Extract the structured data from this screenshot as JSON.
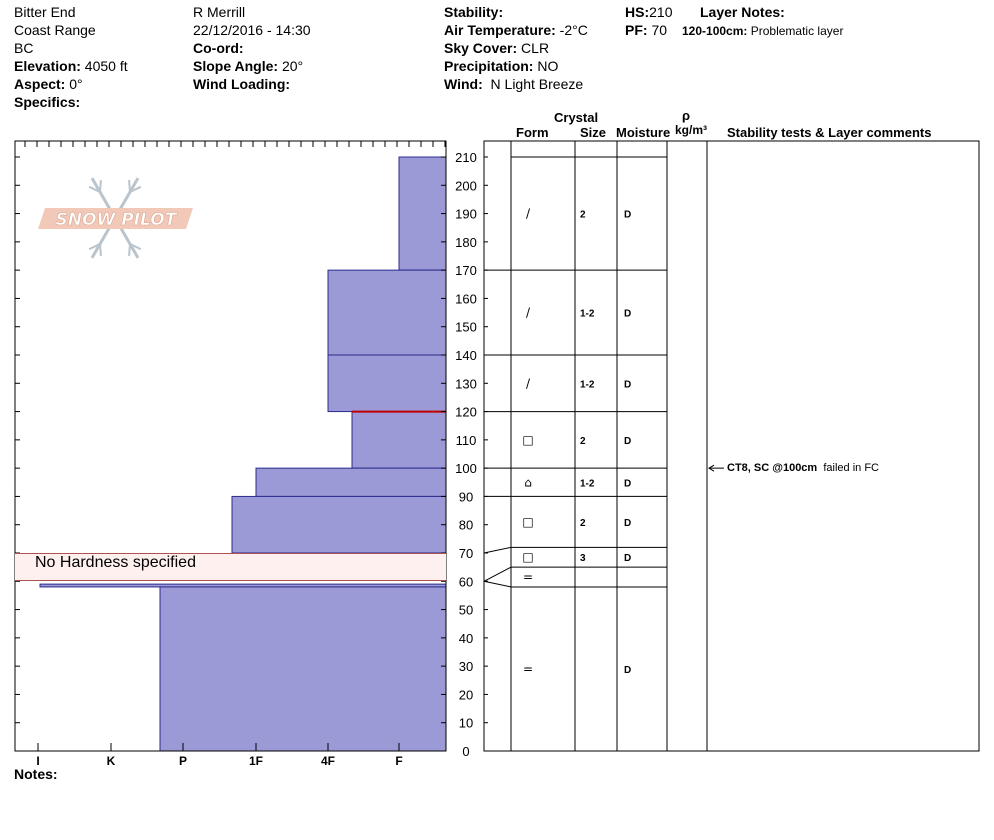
{
  "header": {
    "location": "Bitter End",
    "range": "Coast Range",
    "region": "BC",
    "elevation_label": "Elevation:",
    "elevation_value": "4050 ft",
    "aspect_label": "Aspect:",
    "aspect_value": "0°",
    "specifics_label": "Specifics:",
    "observer": "R Merrill",
    "datetime": "22/12/2016 - 14:30",
    "coord_label": "Co-ord:",
    "slope_label": "Slope Angle:",
    "slope_value": "20°",
    "wind_loading_label": "Wind Loading:",
    "stability_label": "Stability:",
    "air_temp_label": "Air Temperature:",
    "air_temp_value": "-2°C",
    "sky_label": "Sky Cover:",
    "sky_value": "CLR",
    "precip_label": "Precipitation:",
    "precip_value": "NO",
    "wind_label": "Wind:",
    "wind_value": "N Light Breeze",
    "hs_label": "HS:",
    "hs_value": "210",
    "pf_label": "PF:",
    "pf_value": "70",
    "layer_notes_label": "Layer Notes:",
    "layer_note_range": "120-100cm:",
    "layer_note_text": "Problematic layer"
  },
  "table_headers": {
    "crystal": "Crystal",
    "form": "Form",
    "size": "Size",
    "moisture": "Moisture",
    "rho": "ρ",
    "density_unit": "kg/m³",
    "comments": "Stability tests & Layer comments"
  },
  "logo_text": "SNOW PILOT",
  "no_hardness_text": "No Hardness specified",
  "notes_label": "Notes:",
  "stability_test": {
    "depth": 100,
    "label": "CT8, SC @100cm",
    "result": "failed in FC"
  },
  "chart_data": {
    "type": "snow-profile",
    "depth_axis": {
      "min": 0,
      "max": 210,
      "step": 10,
      "unit": "cm"
    },
    "hardness_scale": [
      "I",
      "K",
      "P",
      "1F",
      "4F",
      "F"
    ],
    "hardness_layers": [
      {
        "top": 210,
        "bottom": 170,
        "hardness": "F"
      },
      {
        "top": 170,
        "bottom": 140,
        "hardness": "4F"
      },
      {
        "top": 140,
        "bottom": 120,
        "hardness": "4F"
      },
      {
        "top": 120,
        "bottom": 100,
        "hardness": "4F+"
      },
      {
        "top": 100,
        "bottom": 90,
        "hardness": "1F"
      },
      {
        "top": 90,
        "bottom": 70,
        "hardness": "1F-"
      },
      {
        "top": 70,
        "bottom": 59,
        "hardness": "none"
      },
      {
        "top": 59,
        "bottom": 58,
        "hardness": "I+"
      },
      {
        "top": 58,
        "bottom": 0,
        "hardness": "P-"
      }
    ],
    "layer_boundaries": [
      210,
      170,
      140,
      120,
      100,
      90,
      72,
      65,
      58
    ],
    "layers": [
      {
        "top": 210,
        "bottom": 170,
        "form": "/",
        "size": "2",
        "moisture": "D"
      },
      {
        "top": 170,
        "bottom": 140,
        "form": "/",
        "size": "1-2",
        "moisture": "D"
      },
      {
        "top": 140,
        "bottom": 120,
        "form": "/",
        "size": "1-2",
        "moisture": "D"
      },
      {
        "top": 120,
        "bottom": 100,
        "form": "□",
        "size": "2",
        "moisture": "D"
      },
      {
        "top": 100,
        "bottom": 90,
        "form": "⌂",
        "size": "1-2",
        "moisture": "D"
      },
      {
        "top": 90,
        "bottom": 72,
        "form": "□",
        "size": "2",
        "moisture": "D"
      },
      {
        "top": 72,
        "bottom": 65,
        "form": "□",
        "size": "3",
        "moisture": "D"
      },
      {
        "top": 65,
        "bottom": 58,
        "form": "=",
        "size": "",
        "moisture": ""
      },
      {
        "top": 58,
        "bottom": 0,
        "form": "=",
        "size": "",
        "moisture": "D"
      }
    ],
    "problem_layer_depth": 120,
    "colors": {
      "fill": "#9b99d6",
      "stroke": "#2b2b8c",
      "problem": "#c00000",
      "no_hardness_bg": "#fdf0ee",
      "no_hardness_border": "#b05050"
    }
  }
}
